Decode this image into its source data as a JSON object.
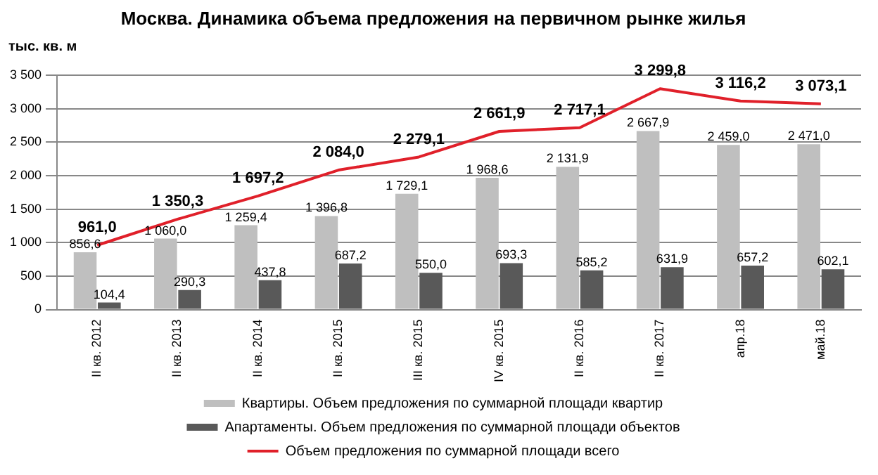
{
  "chart_data": {
    "type": "bar",
    "title": "Москва. Динамика объема предложения на первичном рынке жилья",
    "ylabel": "тыс. кв. м",
    "categories": [
      "II кв. 2012",
      "II кв. 2013",
      "II кв. 2014",
      "II кв. 2015",
      "III кв. 2015",
      "IV кв. 2015",
      "II кв. 2016",
      "II кв. 2017",
      "апр.18",
      "май.18"
    ],
    "series": [
      {
        "name": "Квартиры. Объем предложения по суммарной площади квартир",
        "color": "#bfbfbf",
        "values": [
          856.6,
          1060.0,
          1259.4,
          1396.8,
          1729.1,
          1968.6,
          2131.9,
          2667.9,
          2459.0,
          2471.0
        ],
        "value_labels": [
          "856,6",
          "1 060,0",
          "1 259,4",
          "1 396,8",
          "1 729,1",
          "1 968,6",
          "2 131,9",
          "2 667,9",
          "2 459,0",
          "2 471,0"
        ]
      },
      {
        "name": "Апартаменты. Объем предложения по суммарной площади объектов",
        "color": "#595959",
        "values": [
          104.4,
          290.3,
          437.8,
          687.2,
          550.0,
          693.3,
          585.2,
          631.9,
          657.2,
          602.1
        ],
        "value_labels": [
          "104,4",
          "290,3",
          "437,8",
          "687,2",
          "550,0",
          "693,3",
          "585,2",
          "631,9",
          "657,2",
          "602,1"
        ]
      },
      {
        "name": "Объем предложения по суммарной площади всего",
        "type": "line",
        "color": "#e0202a",
        "values": [
          961.0,
          1350.3,
          1697.2,
          2084.0,
          2279.1,
          2661.9,
          2717.1,
          3299.8,
          3116.2,
          3073.1
        ],
        "value_labels": [
          "961,0",
          "1 350,3",
          "1 697,2",
          "2 084,0",
          "2 279,1",
          "2 661,9",
          "2 717,1",
          "3 299,8",
          "3 116,2",
          "3 073,1"
        ]
      }
    ],
    "ylim": [
      0,
      3500
    ],
    "yticks": [
      {
        "value": 0,
        "label": "0"
      },
      {
        "value": 500,
        "label": "500"
      },
      {
        "value": 1000,
        "label": "1 000"
      },
      {
        "value": 1500,
        "label": "1 500"
      },
      {
        "value": 2000,
        "label": "2 000"
      },
      {
        "value": 2500,
        "label": "2 500"
      },
      {
        "value": 3000,
        "label": "3 000"
      },
      {
        "value": 3500,
        "label": "3 500"
      }
    ],
    "grid": "y",
    "legend": "bottom",
    "marker": "none"
  }
}
